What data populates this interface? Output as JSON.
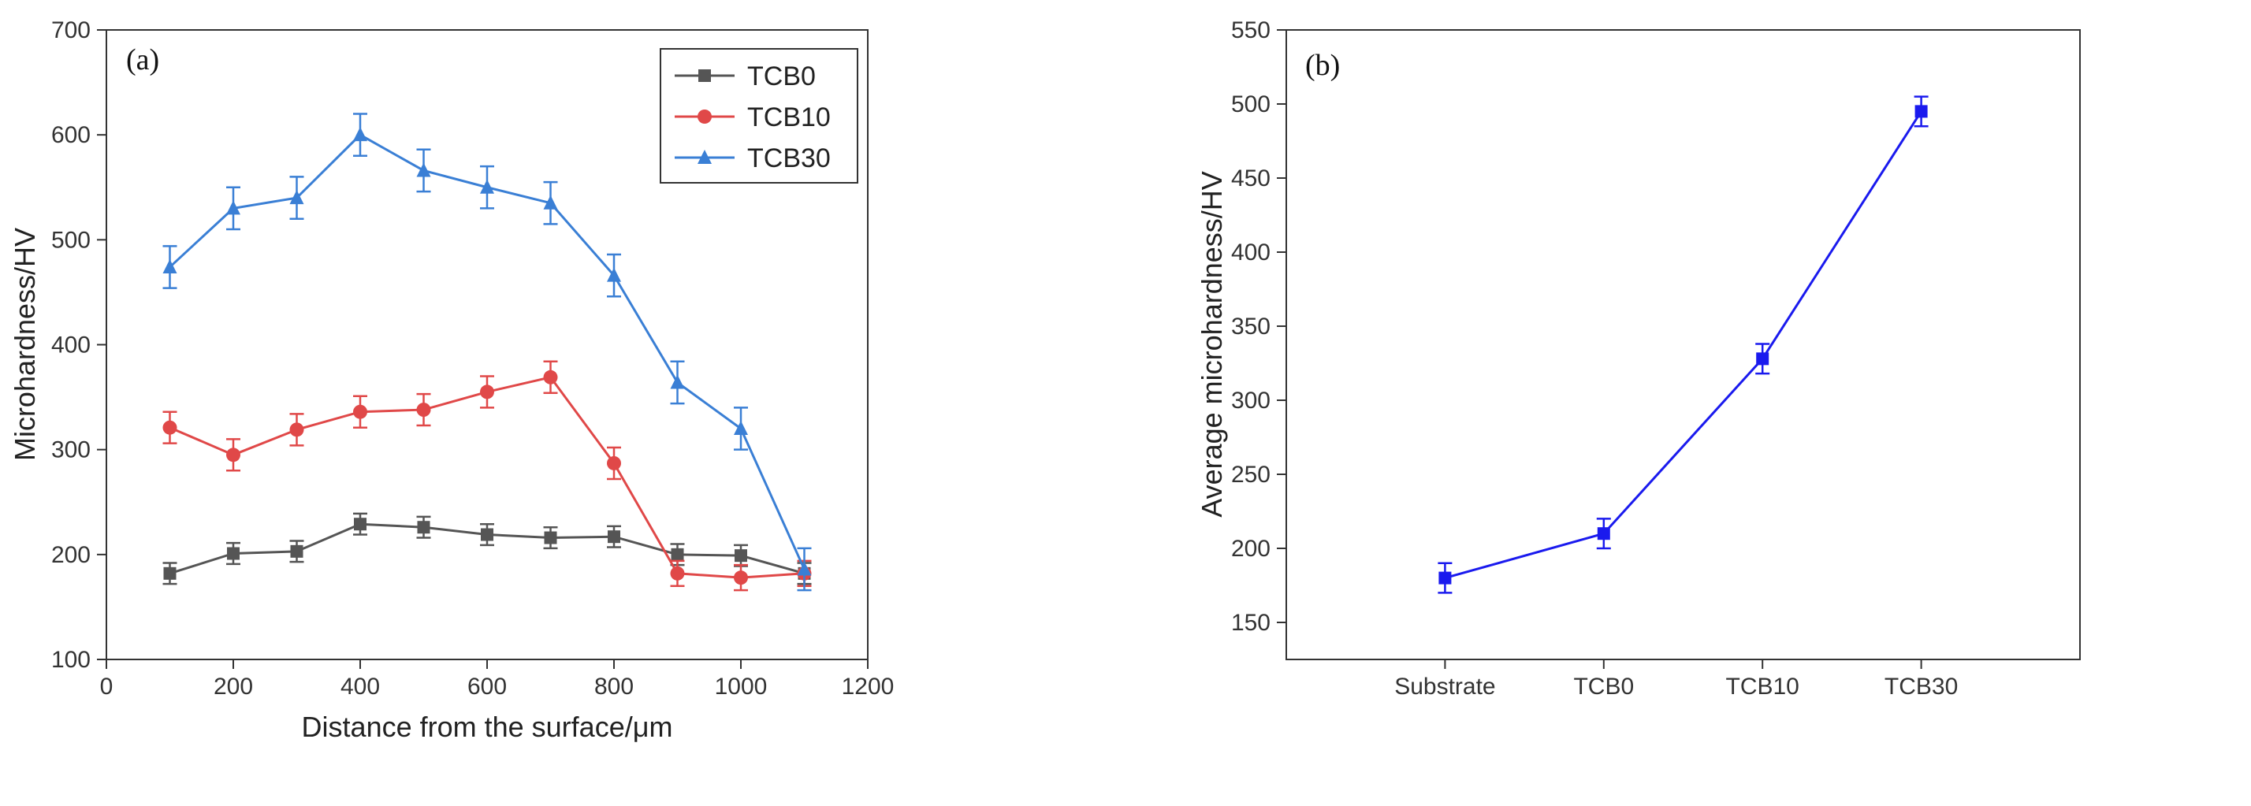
{
  "chart_data": [
    {
      "type": "line",
      "panel_label": "(a)",
      "title": "",
      "xlabel": "Distance from the surface/μm",
      "ylabel": "Microhardness/HV",
      "xlim": [
        0,
        1200
      ],
      "ylim": [
        100,
        700
      ],
      "xticks": [
        0,
        200,
        400,
        600,
        800,
        1000,
        1200
      ],
      "yticks": [
        100,
        200,
        300,
        400,
        500,
        600,
        700
      ],
      "grid": false,
      "legend_position": "top-right",
      "x": [
        100,
        200,
        300,
        400,
        500,
        600,
        700,
        800,
        900,
        1000,
        1100
      ],
      "series": [
        {
          "name": "TCB0",
          "color": "#555555",
          "marker": "square",
          "values": [
            182,
            201,
            203,
            229,
            226,
            219,
            216,
            217,
            200,
            199,
            182
          ],
          "errors": [
            10,
            10,
            10,
            10,
            10,
            10,
            10,
            10,
            10,
            10,
            10
          ]
        },
        {
          "name": "TCB10",
          "color": "#e04848",
          "marker": "circle",
          "values": [
            321,
            295,
            319,
            336,
            338,
            355,
            369,
            287,
            182,
            178,
            182
          ],
          "errors": [
            15,
            15,
            15,
            15,
            15,
            15,
            15,
            15,
            12,
            12,
            12
          ]
        },
        {
          "name": "TCB30",
          "color": "#3a7fd5",
          "marker": "triangle",
          "values": [
            474,
            530,
            540,
            600,
            566,
            550,
            535,
            466,
            364,
            320,
            186
          ],
          "errors": [
            20,
            20,
            20,
            20,
            20,
            20,
            20,
            20,
            20,
            20,
            20
          ]
        }
      ]
    },
    {
      "type": "line",
      "panel_label": "(b)",
      "title": "",
      "xlabel": "",
      "ylabel": "Average microhardness/HV",
      "categories": [
        "Substrate",
        "TCB0",
        "TCB10",
        "TCB30"
      ],
      "ylim": [
        125,
        550
      ],
      "yticks": [
        150,
        200,
        250,
        300,
        350,
        400,
        450,
        500,
        550
      ],
      "grid": false,
      "series": [
        {
          "name": "Average microhardness",
          "color": "#1a1aee",
          "marker": "square",
          "values": [
            180,
            210,
            328,
            495
          ],
          "errors": [
            10,
            10,
            10,
            10
          ]
        }
      ]
    }
  ]
}
